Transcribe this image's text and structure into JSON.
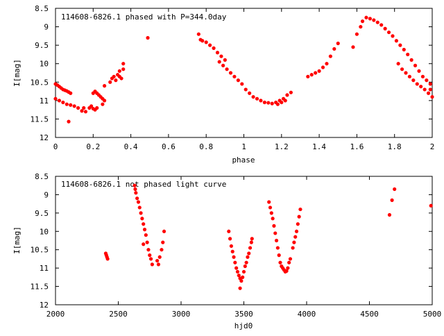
{
  "chart_data": [
    {
      "type": "scatter",
      "title": "114608-6826.1 phased with P=344.0day",
      "xlabel": "phase",
      "ylabel": "I[mag]",
      "xlim": [
        0,
        2
      ],
      "ylim": [
        12,
        8.5
      ],
      "y_inverted": true,
      "grid": false,
      "marker_color": "#ff0000",
      "xticks": [
        "0",
        "0.2",
        "0.4",
        "0.6",
        "0.8",
        "1",
        "1.2",
        "1.4",
        "1.6",
        "1.8",
        "2"
      ],
      "yticks": [
        "8.5",
        "9",
        "9.5",
        "10",
        "10.5",
        "11",
        "11.5",
        "12"
      ],
      "series": [
        {
          "points": [
            [
              0.0,
              10.55
            ],
            [
              0.01,
              10.58
            ],
            [
              0.02,
              10.62
            ],
            [
              0.03,
              10.66
            ],
            [
              0.04,
              10.7
            ],
            [
              0.05,
              10.72
            ],
            [
              0.06,
              10.74
            ],
            [
              0.07,
              10.77
            ],
            [
              0.08,
              10.8
            ],
            [
              0.0,
              10.95
            ],
            [
              0.02,
              11.0
            ],
            [
              0.04,
              11.05
            ],
            [
              0.06,
              11.1
            ],
            [
              0.08,
              11.12
            ],
            [
              0.1,
              11.15
            ],
            [
              0.12,
              11.2
            ],
            [
              0.14,
              11.28
            ],
            [
              0.16,
              11.3
            ],
            [
              0.07,
              11.57
            ],
            [
              0.15,
              11.2
            ],
            [
              0.18,
              11.2
            ],
            [
              0.19,
              11.15
            ],
            [
              0.2,
              11.22
            ],
            [
              0.21,
              11.25
            ],
            [
              0.22,
              11.2
            ],
            [
              0.2,
              10.8
            ],
            [
              0.21,
              10.75
            ],
            [
              0.22,
              10.8
            ],
            [
              0.23,
              10.85
            ],
            [
              0.24,
              10.9
            ],
            [
              0.25,
              10.95
            ],
            [
              0.26,
              11.0
            ],
            [
              0.25,
              11.1
            ],
            [
              0.26,
              10.6
            ],
            [
              0.29,
              10.5
            ],
            [
              0.3,
              10.4
            ],
            [
              0.31,
              10.35
            ],
            [
              0.32,
              10.45
            ],
            [
              0.33,
              10.3
            ],
            [
              0.34,
              10.35
            ],
            [
              0.35,
              10.4
            ],
            [
              0.34,
              10.2
            ],
            [
              0.36,
              10.15
            ],
            [
              0.36,
              10.0
            ],
            [
              0.49,
              9.3
            ],
            [
              0.76,
              9.2
            ],
            [
              0.77,
              9.35
            ],
            [
              0.78,
              9.38
            ],
            [
              0.8,
              9.42
            ],
            [
              0.82,
              9.5
            ],
            [
              0.84,
              9.58
            ],
            [
              0.86,
              9.7
            ],
            [
              0.88,
              9.8
            ],
            [
              0.9,
              9.9
            ],
            [
              0.87,
              9.95
            ],
            [
              0.89,
              10.05
            ],
            [
              0.91,
              10.15
            ],
            [
              0.93,
              10.25
            ],
            [
              0.95,
              10.35
            ],
            [
              0.97,
              10.45
            ],
            [
              0.99,
              10.55
            ],
            [
              1.01,
              10.7
            ],
            [
              1.03,
              10.8
            ],
            [
              1.05,
              10.9
            ],
            [
              1.07,
              10.95
            ],
            [
              1.09,
              11.0
            ],
            [
              1.11,
              11.05
            ],
            [
              1.13,
              11.06
            ],
            [
              1.15,
              11.08
            ],
            [
              1.17,
              11.05
            ],
            [
              1.19,
              11.0
            ],
            [
              1.21,
              10.95
            ],
            [
              1.23,
              10.85
            ],
            [
              1.25,
              10.78
            ],
            [
              1.18,
              11.1
            ],
            [
              1.2,
              11.05
            ],
            [
              1.22,
              11.0
            ],
            [
              1.34,
              10.35
            ],
            [
              1.36,
              10.3
            ],
            [
              1.38,
              10.25
            ],
            [
              1.4,
              10.2
            ],
            [
              1.42,
              10.1
            ],
            [
              1.44,
              10.0
            ],
            [
              1.46,
              9.8
            ],
            [
              1.48,
              9.6
            ],
            [
              1.5,
              9.45
            ],
            [
              1.58,
              9.55
            ],
            [
              1.6,
              9.2
            ],
            [
              1.62,
              9.0
            ],
            [
              1.63,
              8.85
            ],
            [
              1.65,
              8.75
            ],
            [
              1.67,
              8.78
            ],
            [
              1.69,
              8.82
            ],
            [
              1.71,
              8.88
            ],
            [
              1.73,
              8.95
            ],
            [
              1.75,
              9.05
            ],
            [
              1.77,
              9.15
            ],
            [
              1.79,
              9.25
            ],
            [
              1.81,
              9.38
            ],
            [
              1.83,
              9.5
            ],
            [
              1.85,
              9.62
            ],
            [
              1.87,
              9.75
            ],
            [
              1.89,
              9.9
            ],
            [
              1.91,
              10.05
            ],
            [
              1.93,
              10.2
            ],
            [
              1.95,
              10.35
            ],
            [
              1.97,
              10.45
            ],
            [
              1.99,
              10.55
            ],
            [
              1.82,
              10.0
            ],
            [
              1.84,
              10.15
            ],
            [
              1.86,
              10.25
            ],
            [
              1.88,
              10.35
            ],
            [
              1.9,
              10.45
            ],
            [
              1.92,
              10.55
            ],
            [
              1.94,
              10.62
            ],
            [
              1.96,
              10.7
            ],
            [
              1.98,
              10.8
            ],
            [
              2.0,
              10.9
            ],
            [
              1.99,
              10.7
            ]
          ]
        }
      ]
    },
    {
      "type": "scatter",
      "title": "114608-6826.1 not phased light curve",
      "xlabel": "hjd0",
      "ylabel": "I[mag]",
      "xlim": [
        2000,
        5000
      ],
      "ylim": [
        12,
        8.5
      ],
      "y_inverted": true,
      "grid": false,
      "marker_color": "#ff0000",
      "xticks": [
        "2000",
        "2500",
        "3000",
        "3500",
        "4000",
        "4500",
        "5000"
      ],
      "yticks": [
        "8.5",
        "9",
        "9.5",
        "10",
        "10.5",
        "11",
        "11.5",
        "12"
      ],
      "series": [
        {
          "points": [
            [
              2400,
              10.6
            ],
            [
              2405,
              10.65
            ],
            [
              2410,
              10.7
            ],
            [
              2415,
              10.75
            ],
            [
              2630,
              8.75
            ],
            [
              2635,
              8.85
            ],
            [
              2640,
              8.95
            ],
            [
              2650,
              9.1
            ],
            [
              2660,
              9.2
            ],
            [
              2670,
              9.35
            ],
            [
              2680,
              9.5
            ],
            [
              2690,
              9.65
            ],
            [
              2700,
              9.8
            ],
            [
              2710,
              9.95
            ],
            [
              2700,
              10.35
            ],
            [
              2720,
              10.1
            ],
            [
              2730,
              10.3
            ],
            [
              2740,
              10.5
            ],
            [
              2750,
              10.65
            ],
            [
              2760,
              10.75
            ],
            [
              2770,
              10.9
            ],
            [
              2810,
              10.8
            ],
            [
              2820,
              10.9
            ],
            [
              2830,
              10.7
            ],
            [
              2845,
              10.5
            ],
            [
              2855,
              10.3
            ],
            [
              2865,
              10.0
            ],
            [
              3380,
              10.0
            ],
            [
              3390,
              10.2
            ],
            [
              3400,
              10.4
            ],
            [
              3410,
              10.55
            ],
            [
              3420,
              10.7
            ],
            [
              3430,
              10.85
            ],
            [
              3440,
              11.0
            ],
            [
              3450,
              11.1
            ],
            [
              3460,
              11.2
            ],
            [
              3470,
              11.28
            ],
            [
              3480,
              11.35
            ],
            [
              3470,
              11.55
            ],
            [
              3490,
              11.25
            ],
            [
              3500,
              11.1
            ],
            [
              3510,
              10.95
            ],
            [
              3520,
              10.85
            ],
            [
              3530,
              10.7
            ],
            [
              3540,
              10.6
            ],
            [
              3550,
              10.45
            ],
            [
              3560,
              10.3
            ],
            [
              3565,
              10.2
            ],
            [
              3700,
              9.2
            ],
            [
              3710,
              9.35
            ],
            [
              3720,
              9.5
            ],
            [
              3730,
              9.65
            ],
            [
              3740,
              9.85
            ],
            [
              3750,
              10.05
            ],
            [
              3760,
              10.25
            ],
            [
              3770,
              10.45
            ],
            [
              3780,
              10.65
            ],
            [
              3790,
              10.85
            ],
            [
              3800,
              10.95
            ],
            [
              3810,
              11.0
            ],
            [
              3820,
              11.05
            ],
            [
              3830,
              11.1
            ],
            [
              3840,
              11.08
            ],
            [
              3850,
              11.0
            ],
            [
              3860,
              10.85
            ],
            [
              3870,
              10.75
            ],
            [
              3890,
              10.45
            ],
            [
              3900,
              10.3
            ],
            [
              3910,
              10.15
            ],
            [
              3920,
              10.0
            ],
            [
              3930,
              9.8
            ],
            [
              3940,
              9.6
            ],
            [
              3950,
              9.4
            ],
            [
              4660,
              9.55
            ],
            [
              4680,
              9.15
            ],
            [
              4700,
              8.85
            ],
            [
              4990,
              9.3
            ]
          ]
        }
      ]
    }
  ]
}
